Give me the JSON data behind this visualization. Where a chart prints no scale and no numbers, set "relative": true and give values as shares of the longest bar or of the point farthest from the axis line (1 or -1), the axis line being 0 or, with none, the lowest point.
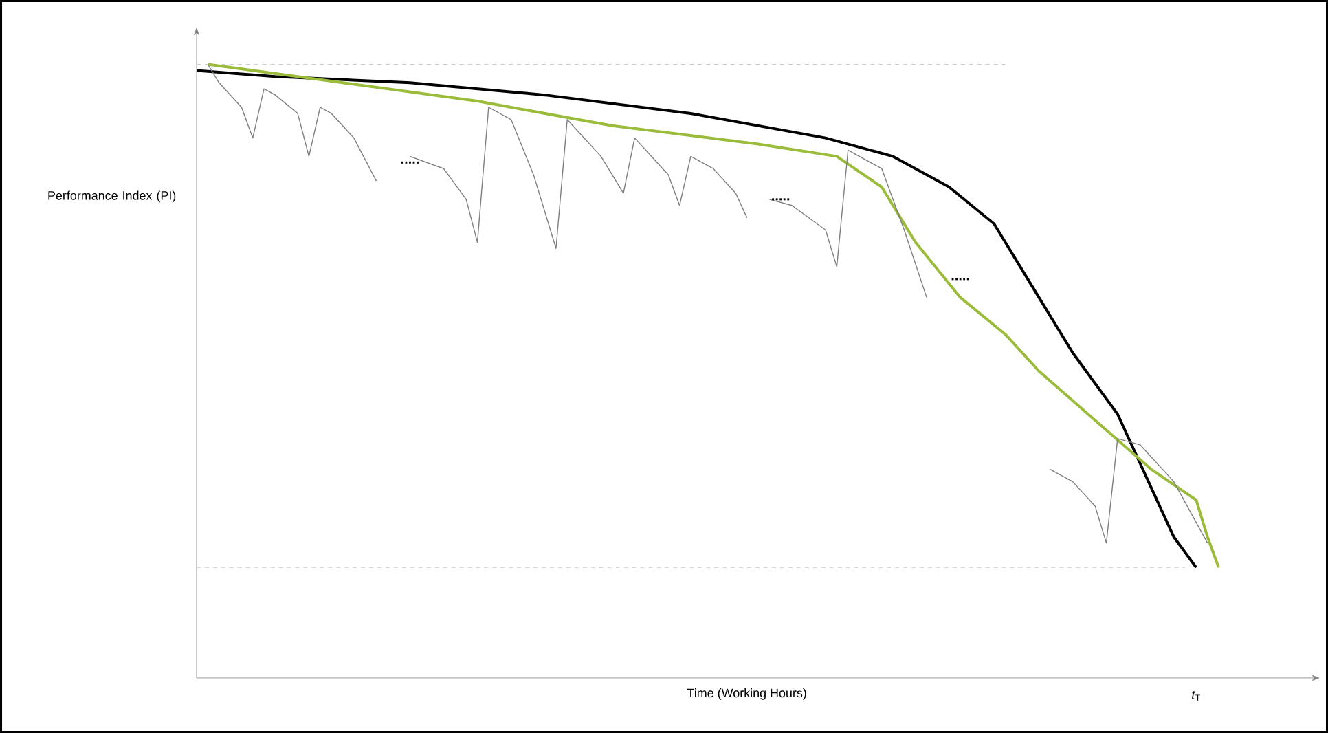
{
  "chart_data": {
    "type": "line",
    "relative": true,
    "xlabel": "Time (Working Hours)",
    "ylabel": "Performance Index (PI)",
    "marker": "none",
    "categories": [
      null,
      null,
      null,
      null,
      null,
      null,
      null,
      null,
      null,
      null,
      null,
      null,
      null,
      null,
      null,
      null,
      null,
      null,
      null,
      null,
      null,
      null,
      null,
      null,
      null,
      null,
      null,
      null,
      null,
      null,
      null,
      null,
      null,
      null,
      null,
      null,
      null,
      null,
      null,
      null,
      null,
      null,
      null,
      null,
      null,
      null,
      null,
      null,
      null,
      null,
      null,
      null,
      null,
      null,
      null,
      null,
      null,
      null,
      null,
      null,
      null,
      null,
      null,
      null,
      null,
      null,
      null,
      null,
      null,
      null,
      null,
      null,
      null,
      null,
      null,
      null,
      null,
      null,
      null,
      null,
      null,
      null,
      null,
      null,
      null,
      null,
      null,
      null,
      null,
      null,
      null,
      null
    ],
    "series": [
      {
        "color": "#000000",
        "values": [
          0.99,
          null,
          null,
          null,
          null,
          null,
          null,
          0.98,
          null,
          null,
          null,
          null,
          null,
          null,
          null,
          null,
          null,
          null,
          null,
          0.97,
          null,
          null,
          null,
          null,
          null,
          null,
          null,
          null,
          null,
          null,
          null,
          0.95,
          null,
          null,
          null,
          null,
          null,
          null,
          null,
          null,
          null,
          null,
          null,
          null,
          0.92,
          null,
          null,
          null,
          null,
          null,
          null,
          null,
          null,
          null,
          null,
          null,
          0.88,
          null,
          null,
          null,
          null,
          null,
          0.85,
          null,
          null,
          null,
          null,
          0.8,
          null,
          null,
          null,
          0.74,
          null,
          null,
          0.65,
          null,
          null,
          null,
          0.53,
          null,
          null,
          null,
          0.43,
          null,
          null,
          0.31,
          null,
          0.23,
          null,
          0.18,
          null,
          null
        ]
      },
      {
        "color": "#9bbb3a",
        "values": [
          null,
          1.0,
          null,
          null,
          null,
          null,
          null,
          null,
          null,
          null,
          null,
          null,
          null,
          0.97,
          null,
          null,
          null,
          null,
          null,
          null,
          null,
          null,
          null,
          null,
          null,
          0.94,
          null,
          null,
          null,
          null,
          null,
          null,
          null,
          null,
          null,
          null,
          null,
          0.9,
          null,
          null,
          null,
          null,
          null,
          null,
          null,
          null,
          null,
          null,
          null,
          null,
          0.87,
          null,
          null,
          null,
          null,
          null,
          null,
          0.85,
          null,
          null,
          null,
          0.8,
          null,
          null,
          0.71,
          null,
          null,
          null,
          0.62,
          null,
          null,
          null,
          0.56,
          null,
          null,
          0.5,
          null,
          null,
          null,
          null,
          0.42,
          null,
          null,
          null,
          null,
          0.34,
          null,
          null,
          null,
          0.29,
          0.23,
          0.18
        ]
      },
      {
        "color": "#7f7f7f",
        "values": [
          null,
          1.0,
          0.97,
          null,
          0.93,
          0.88,
          0.96,
          0.95,
          null,
          0.92,
          0.85,
          0.93,
          0.92,
          null,
          0.88,
          null,
          0.81,
          null,
          null,
          null,
          null,
          null,
          null,
          null,
          null,
          null,
          null,
          null,
          null,
          null,
          null,
          null,
          null,
          null,
          null,
          null,
          null,
          null,
          null,
          null,
          null,
          null,
          null,
          null,
          null,
          null,
          null,
          null,
          null,
          null,
          null,
          null,
          null,
          null,
          null,
          null,
          null,
          null,
          null,
          null,
          null,
          null,
          null,
          null,
          null,
          null,
          null,
          null,
          null,
          null,
          null,
          null,
          null,
          null,
          null,
          null,
          null,
          null,
          null,
          null,
          null,
          null,
          null,
          null,
          null,
          null,
          null,
          null,
          null,
          null,
          null,
          null
        ]
      },
      {
        "color": "#7f7f7f",
        "values": [
          null,
          null,
          null,
          null,
          null,
          null,
          null,
          null,
          null,
          null,
          null,
          null,
          null,
          null,
          null,
          null,
          null,
          null,
          null,
          0.85,
          null,
          null,
          0.83,
          null,
          0.78,
          0.71,
          0.93,
          null,
          0.91,
          null,
          0.82,
          null,
          0.7,
          0.91,
          0.89,
          null,
          0.85,
          null,
          0.79,
          0.88,
          0.86,
          null,
          0.82,
          0.77,
          0.85,
          null,
          0.83,
          null,
          0.79,
          0.75,
          null,
          null,
          null,
          null,
          null,
          null,
          null,
          null,
          null,
          null,
          null,
          null,
          null,
          null,
          null,
          null,
          null,
          null,
          null,
          null,
          null,
          null,
          null,
          null,
          null,
          null,
          null,
          null,
          null,
          null,
          null,
          null,
          null,
          null,
          null,
          null,
          null,
          null,
          null,
          null,
          null,
          null
        ]
      },
      {
        "color": "#7f7f7f",
        "values": [
          null,
          null,
          null,
          null,
          null,
          null,
          null,
          null,
          null,
          null,
          null,
          null,
          null,
          null,
          null,
          null,
          null,
          null,
          null,
          null,
          null,
          null,
          null,
          null,
          null,
          null,
          null,
          null,
          null,
          null,
          null,
          null,
          null,
          null,
          null,
          null,
          null,
          null,
          null,
          null,
          null,
          null,
          null,
          null,
          null,
          null,
          null,
          null,
          null,
          null,
          null,
          0.78,
          null,
          0.77,
          null,
          null,
          0.73,
          0.67,
          0.86,
          null,
          null,
          0.83,
          null,
          0.73,
          null,
          0.62,
          null,
          null,
          null,
          null,
          null,
          null,
          null,
          null,
          null,
          null,
          null,
          null,
          null,
          null,
          null,
          null,
          null,
          null,
          null,
          null,
          null,
          null,
          null,
          null,
          null,
          null
        ]
      },
      {
        "color": "#7f7f7f",
        "values": [
          null,
          null,
          null,
          null,
          null,
          null,
          null,
          null,
          null,
          null,
          null,
          null,
          null,
          null,
          null,
          null,
          null,
          null,
          null,
          null,
          null,
          null,
          null,
          null,
          null,
          null,
          null,
          null,
          null,
          null,
          null,
          null,
          null,
          null,
          null,
          null,
          null,
          null,
          null,
          null,
          null,
          null,
          null,
          null,
          null,
          null,
          null,
          null,
          null,
          null,
          null,
          null,
          null,
          null,
          null,
          null,
          null,
          null,
          null,
          null,
          null,
          null,
          null,
          null,
          null,
          null,
          null,
          null,
          null,
          null,
          null,
          null,
          null,
          null,
          null,
          null,
          0.34,
          null,
          0.32,
          null,
          0.28,
          0.22,
          0.39,
          null,
          0.38,
          null,
          null,
          0.32,
          null,
          null,
          0.22,
          null
        ]
      }
    ],
    "ref_lines": [
      {
        "axis": "y",
        "value": 1.0,
        "color": "#bfbfbf",
        "line_style": "dashed"
      },
      {
        "axis": "y",
        "value": 0.18,
        "color": "#bfbfbf",
        "line_style": "dashed"
      }
    ],
    "annotations": [
      ".....",
      ".....",
      ".....",
      "*t*$_{T}$"
    ]
  }
}
